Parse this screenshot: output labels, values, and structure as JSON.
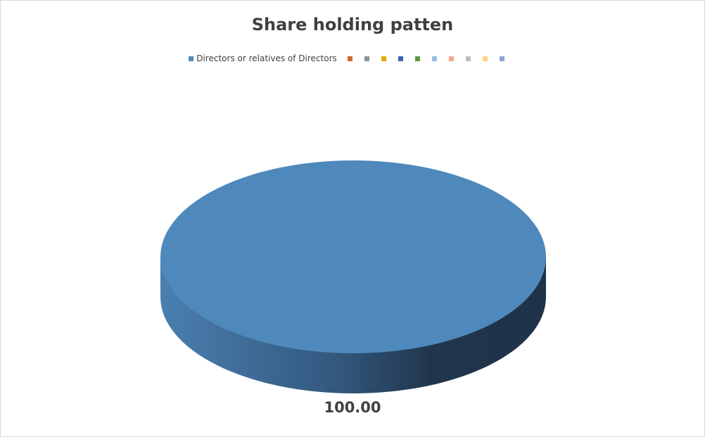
{
  "chart_data": {
    "type": "pie",
    "style": "3d",
    "title": "Share holding patten",
    "legend_position": "top",
    "slices": [
      {
        "name": "Directors or relatives of Directors",
        "value": 100.0,
        "color": "#4F89BC"
      },
      {
        "name": "",
        "value": 0,
        "color": "#D0672A"
      },
      {
        "name": "",
        "value": 0,
        "color": "#929292"
      },
      {
        "name": "",
        "value": 0,
        "color": "#E0AC00"
      },
      {
        "name": "",
        "value": 0,
        "color": "#3A62AD"
      },
      {
        "name": "",
        "value": 0,
        "color": "#5F993F"
      },
      {
        "name": "",
        "value": 0,
        "color": "#9ABBE0"
      },
      {
        "name": "",
        "value": 0,
        "color": "#F2A98A"
      },
      {
        "name": "",
        "value": 0,
        "color": "#BDBDBD"
      },
      {
        "name": "",
        "value": 0,
        "color": "#FFD27F"
      },
      {
        "name": "",
        "value": 0,
        "color": "#8FA3D6"
      }
    ],
    "data_labels": [
      "100.00"
    ]
  }
}
